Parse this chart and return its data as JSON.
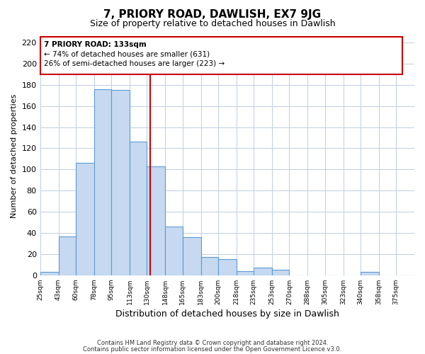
{
  "title": "7, PRIORY ROAD, DAWLISH, EX7 9JG",
  "subtitle": "Size of property relative to detached houses in Dawlish",
  "xlabel": "Distribution of detached houses by size in Dawlish",
  "ylabel": "Number of detached properties",
  "footer_line1": "Contains HM Land Registry data © Crown copyright and database right 2024.",
  "footer_line2": "Contains public sector information licensed under the Open Government Licence v3.0.",
  "bin_labels": [
    "25sqm",
    "43sqm",
    "60sqm",
    "78sqm",
    "95sqm",
    "113sqm",
    "130sqm",
    "148sqm",
    "165sqm",
    "183sqm",
    "200sqm",
    "218sqm",
    "235sqm",
    "253sqm",
    "270sqm",
    "288sqm",
    "305sqm",
    "323sqm",
    "340sqm",
    "358sqm",
    "375sqm"
  ],
  "bin_edges": [
    25,
    43,
    60,
    78,
    95,
    113,
    130,
    148,
    165,
    183,
    200,
    218,
    235,
    253,
    270,
    288,
    305,
    323,
    340,
    358,
    375
  ],
  "bar_heights": [
    3,
    37,
    106,
    176,
    175,
    126,
    103,
    46,
    36,
    17,
    15,
    4,
    7,
    5,
    0,
    0,
    0,
    0,
    3,
    0,
    0
  ],
  "bar_color": "#c6d9f0",
  "bar_edge_color": "#5b9bd5",
  "vline_x": 133,
  "vline_color": "#cc0000",
  "annotation_title": "7 PRIORY ROAD: 133sqm",
  "annotation_line1": "← 74% of detached houses are smaller (631)",
  "annotation_line2": "26% of semi-detached houses are larger (223) →",
  "annotation_box_edge_color": "#cc0000",
  "ylim": [
    0,
    225
  ],
  "yticks": [
    0,
    20,
    40,
    60,
    80,
    100,
    120,
    140,
    160,
    180,
    200,
    220
  ],
  "background_color": "#ffffff",
  "grid_color": "#c0cfe0"
}
